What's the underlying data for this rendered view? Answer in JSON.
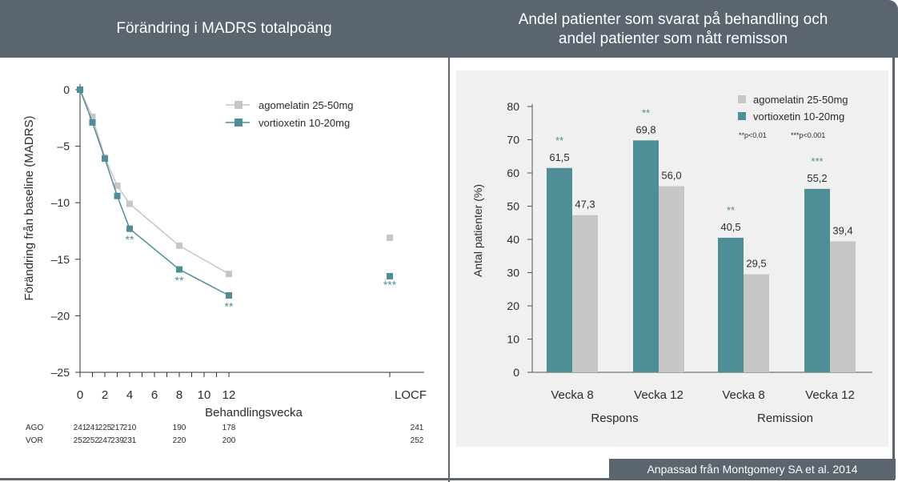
{
  "left_panel": {
    "title": "Förändring i MADRS totalpoäng"
  },
  "right_panel": {
    "title_line1": "Andel patienter som svarat på behandling och",
    "title_line2": "andel patienter som nått remisson"
  },
  "footer": "Anpassad från Montgomery SA et al. 2014",
  "colors": {
    "agomelatin": "#c6c6c6",
    "vortioxetin": "#4e8e96",
    "header": "#5a6570"
  },
  "chart_data": [
    {
      "type": "line",
      "xlabel": "Behandlingsvecka",
      "ylabel": "Förändring från baseline (MADRS)",
      "ylim": [
        -25,
        0
      ],
      "yticks": [
        0,
        -5,
        -10,
        -15,
        -20,
        -25
      ],
      "ytick_labels": [
        "0",
        "–5",
        "–10",
        "–15",
        "–20",
        "–25"
      ],
      "xticks": [
        0,
        2,
        4,
        6,
        8,
        10,
        12
      ],
      "xtick_labels": [
        "0",
        "2",
        "4",
        "6",
        "8",
        "10",
        "12"
      ],
      "locf_label": "LOCF",
      "series": [
        {
          "name": "agomelatin 25-50mg",
          "x": [
            0,
            1,
            2,
            3,
            4,
            8,
            12
          ],
          "values": [
            0,
            -2.4,
            -6.0,
            -8.5,
            -10.1,
            -13.8,
            -16.3
          ],
          "locf": -13.1
        },
        {
          "name": "vortioxetin 10-20mg",
          "x": [
            0,
            1,
            2,
            3,
            4,
            8,
            12
          ],
          "values": [
            0,
            -2.9,
            -6.1,
            -9.4,
            -12.3,
            -15.9,
            -18.2
          ],
          "locf": -16.5
        }
      ],
      "annotations": [
        {
          "x": 4,
          "y": -13.6,
          "text": "**"
        },
        {
          "x": 8,
          "y": -17.2,
          "text": "**"
        },
        {
          "x": 12,
          "y": -19.5,
          "text": "**"
        },
        {
          "x": "LOCF",
          "y": -17.6,
          "text": "***"
        }
      ],
      "n_table": {
        "rows": [
          {
            "label": "AGO",
            "values": [
              {
                "x": 0,
                "v": "241"
              },
              {
                "x": 1,
                "v": "241"
              },
              {
                "x": 2,
                "v": "225"
              },
              {
                "x": 3,
                "v": "217"
              },
              {
                "x": 4,
                "v": "210"
              },
              {
                "x": 8,
                "v": "190"
              },
              {
                "x": 12,
                "v": "178"
              },
              {
                "x": "LOCF",
                "v": "241"
              }
            ]
          },
          {
            "label": "VOR",
            "values": [
              {
                "x": 0,
                "v": "252"
              },
              {
                "x": 1,
                "v": "252"
              },
              {
                "x": 2,
                "v": "247"
              },
              {
                "x": 3,
                "v": "239"
              },
              {
                "x": 4,
                "v": "231"
              },
              {
                "x": 8,
                "v": "220"
              },
              {
                "x": 12,
                "v": "200"
              },
              {
                "x": "LOCF",
                "v": "252"
              }
            ]
          }
        ]
      }
    },
    {
      "type": "bar",
      "ylabel": "Antal patienter (%)",
      "ylim": [
        0,
        80
      ],
      "yticks": [
        0,
        10,
        20,
        30,
        40,
        50,
        60,
        70,
        80
      ],
      "categories": [
        "Vecka 8",
        "Vecka 12",
        "Vecka 8",
        "Vecka 12"
      ],
      "groups": [
        "Respons",
        "Remission"
      ],
      "series": [
        {
          "name": "vortioxetin 10-20mg",
          "values": [
            61.5,
            69.8,
            40.5,
            55.2
          ],
          "labels": [
            "61,5",
            "69,8",
            "40,5",
            "55,2"
          ]
        },
        {
          "name": "agomelatin 25-50mg",
          "values": [
            47.3,
            56.0,
            29.5,
            39.4
          ],
          "labels": [
            "47,3",
            "56,0",
            "29,5",
            "39,4"
          ]
        }
      ],
      "significance": [
        "**",
        "**",
        "**",
        "***"
      ],
      "notes": [
        "**p<0.01",
        "***p<0.001"
      ]
    }
  ]
}
